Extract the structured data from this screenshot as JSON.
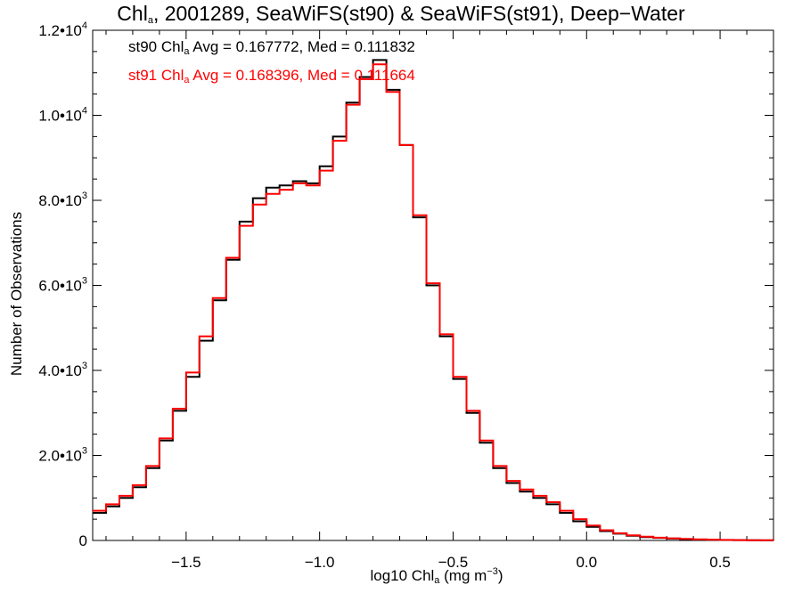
{
  "chart_data": {
    "type": "line",
    "title": {
      "pre": "Chl",
      "sub": "a",
      "post": ", 2001289, SeaWiFS(st90) & SeaWiFS(st91), Deep−Water"
    },
    "xlabel": {
      "pre": "log10 Chl",
      "sub": "a",
      "post": " (mg m",
      "sup": "−3",
      "end": ")"
    },
    "ylabel": "Number of Observations",
    "xlim": [
      -1.85,
      0.7
    ],
    "ylim": [
      0,
      12000
    ],
    "x_ticks": [
      {
        "value": -1.5,
        "label": "−1.5"
      },
      {
        "value": -1.0,
        "label": "−1.0"
      },
      {
        "value": -0.5,
        "label": "−0.5"
      },
      {
        "value": 0.0,
        "label": "0.0"
      },
      {
        "value": 0.5,
        "label": "0.5"
      }
    ],
    "y_ticks": [
      {
        "value": 0,
        "label": "0",
        "exp": ""
      },
      {
        "value": 2000,
        "label": "2.0•10",
        "exp": "3"
      },
      {
        "value": 4000,
        "label": "4.0•10",
        "exp": "3"
      },
      {
        "value": 6000,
        "label": "6.0•10",
        "exp": "3"
      },
      {
        "value": 8000,
        "label": "8.0•10",
        "exp": "3"
      },
      {
        "value": 10000,
        "label": "1.0•10",
        "exp": "4"
      },
      {
        "value": 12000,
        "label": "1.2•10",
        "exp": "4"
      }
    ],
    "grid": false,
    "series": [
      {
        "name": "st90",
        "color": "#000000",
        "stats": {
          "pre": "st90 Chl",
          "sub": "a",
          "post": " Avg = 0.167772, Med = 0.111832"
        },
        "x": [
          -1.85,
          -1.8,
          -1.75,
          -1.7,
          -1.65,
          -1.6,
          -1.55,
          -1.5,
          -1.45,
          -1.4,
          -1.35,
          -1.3,
          -1.25,
          -1.2,
          -1.15,
          -1.1,
          -1.05,
          -1.0,
          -0.95,
          -0.9,
          -0.85,
          -0.8,
          -0.75,
          -0.7,
          -0.65,
          -0.6,
          -0.55,
          -0.5,
          -0.45,
          -0.4,
          -0.35,
          -0.3,
          -0.25,
          -0.2,
          -0.15,
          -0.1,
          -0.05,
          0.0,
          0.05,
          0.1,
          0.15,
          0.2,
          0.25,
          0.3,
          0.35,
          0.4,
          0.45,
          0.5,
          0.55,
          0.6,
          0.65,
          0.7
        ],
        "y": [
          650,
          800,
          1000,
          1250,
          1700,
          2350,
          3050,
          3850,
          4700,
          5650,
          6600,
          7500,
          8050,
          8300,
          8350,
          8450,
          8400,
          8800,
          9500,
          10300,
          10900,
          11300,
          10600,
          9300,
          7600,
          6000,
          4800,
          3800,
          3000,
          2300,
          1700,
          1350,
          1150,
          1000,
          850,
          650,
          450,
          320,
          220,
          160,
          110,
          80,
          60,
          45,
          30,
          20,
          15,
          10,
          8,
          5,
          3,
          2
        ]
      },
      {
        "name": "st91",
        "color": "#ff0000",
        "stats": {
          "pre": "st91 Chl",
          "sub": "a",
          "post": " Avg = 0.168396, Med = 0.111664"
        },
        "x": [
          -1.85,
          -1.8,
          -1.75,
          -1.7,
          -1.65,
          -1.6,
          -1.55,
          -1.5,
          -1.45,
          -1.4,
          -1.35,
          -1.3,
          -1.25,
          -1.2,
          -1.15,
          -1.1,
          -1.05,
          -1.0,
          -0.95,
          -0.9,
          -0.85,
          -0.8,
          -0.75,
          -0.7,
          -0.65,
          -0.6,
          -0.55,
          -0.5,
          -0.45,
          -0.4,
          -0.35,
          -0.3,
          -0.25,
          -0.2,
          -0.15,
          -0.1,
          -0.05,
          0.0,
          0.05,
          0.1,
          0.15,
          0.2,
          0.25,
          0.3,
          0.35,
          0.4,
          0.45,
          0.5,
          0.55,
          0.6,
          0.65,
          0.7
        ],
        "y": [
          700,
          850,
          1050,
          1300,
          1750,
          2400,
          3100,
          3950,
          4800,
          5700,
          6650,
          7400,
          7900,
          8150,
          8250,
          8400,
          8350,
          8700,
          9400,
          10250,
          10850,
          11200,
          10550,
          9300,
          7650,
          6050,
          4850,
          3850,
          3050,
          2350,
          1750,
          1400,
          1200,
          1050,
          900,
          700,
          500,
          350,
          240,
          170,
          120,
          90,
          65,
          50,
          35,
          25,
          18,
          12,
          9,
          6,
          4,
          3
        ]
      }
    ]
  }
}
